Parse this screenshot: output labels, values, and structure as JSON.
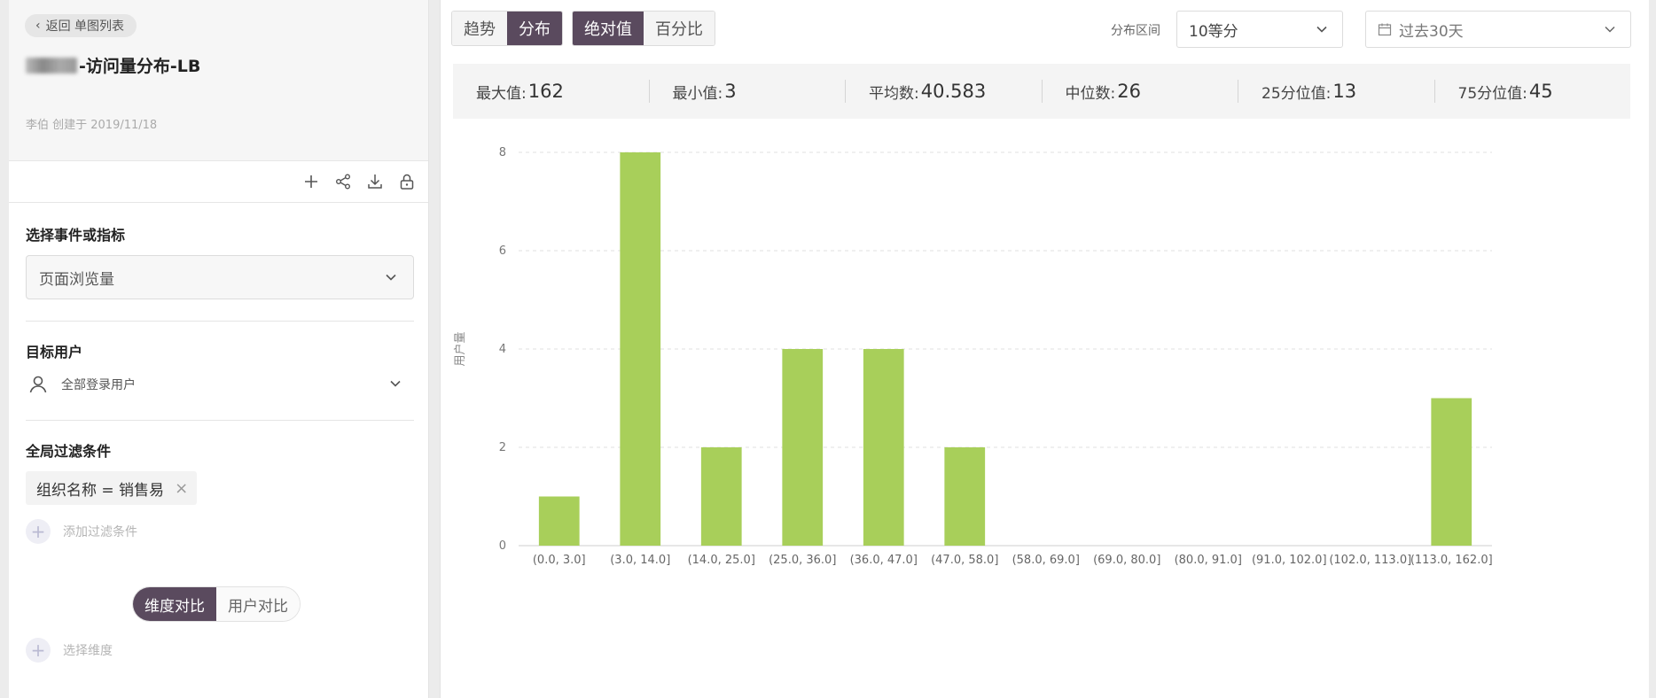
{
  "sidebar": {
    "back_label": "返回 单图列表",
    "title_suffix": "-访问量分布-LB",
    "creator": "李伯 创建于 2019/11/18",
    "event_section_label": "选择事件或指标",
    "event_value": "页面浏览量",
    "target_section_label": "目标用户",
    "target_value": "全部登录用户",
    "filter_section_label": "全局过滤条件",
    "filter_tag": "组织名称 = 销售易",
    "add_filter_label": "添加过滤条件",
    "compare_toggle": {
      "dimension": "维度对比",
      "user": "用户对比"
    },
    "select_dimension_label": "选择维度"
  },
  "toolbar": {
    "view_tabs": [
      "趋势",
      "分布"
    ],
    "active_view": "分布",
    "mode_tabs": [
      "绝对值",
      "百分比"
    ],
    "active_mode": "绝对值",
    "range_label": "分布区间",
    "range_value": "10等分",
    "date_value": "过去30天"
  },
  "stats": [
    {
      "label": "最大值:",
      "value": "162"
    },
    {
      "label": "最小值:",
      "value": "3"
    },
    {
      "label": "平均数:",
      "value": "40.583"
    },
    {
      "label": "中位数:",
      "value": "26"
    },
    {
      "label": "25分位值:",
      "value": "13"
    },
    {
      "label": "75分位值:",
      "value": "45"
    }
  ],
  "colors": {
    "bar": "#a8cf5a",
    "accent": "#5a4a5e"
  },
  "chart_data": {
    "type": "bar",
    "ylabel": "用户量",
    "ylim": [
      0,
      8
    ],
    "yticks": [
      0,
      2,
      4,
      6,
      8
    ],
    "grid": true,
    "categories": [
      "(0.0, 3.0]",
      "(3.0, 14.0]",
      "(14.0, 25.0]",
      "(25.0, 36.0]",
      "(36.0, 47.0]",
      "(47.0, 58.0]",
      "(58.0, 69.0]",
      "(69.0, 80.0]",
      "(80.0, 91.0]",
      "(91.0, 102.0]",
      "(102.0, 113.0]",
      "(113.0, 162.0]"
    ],
    "values": [
      1,
      8,
      2,
      4,
      4,
      2,
      0,
      0,
      0,
      0,
      0,
      3
    ]
  }
}
